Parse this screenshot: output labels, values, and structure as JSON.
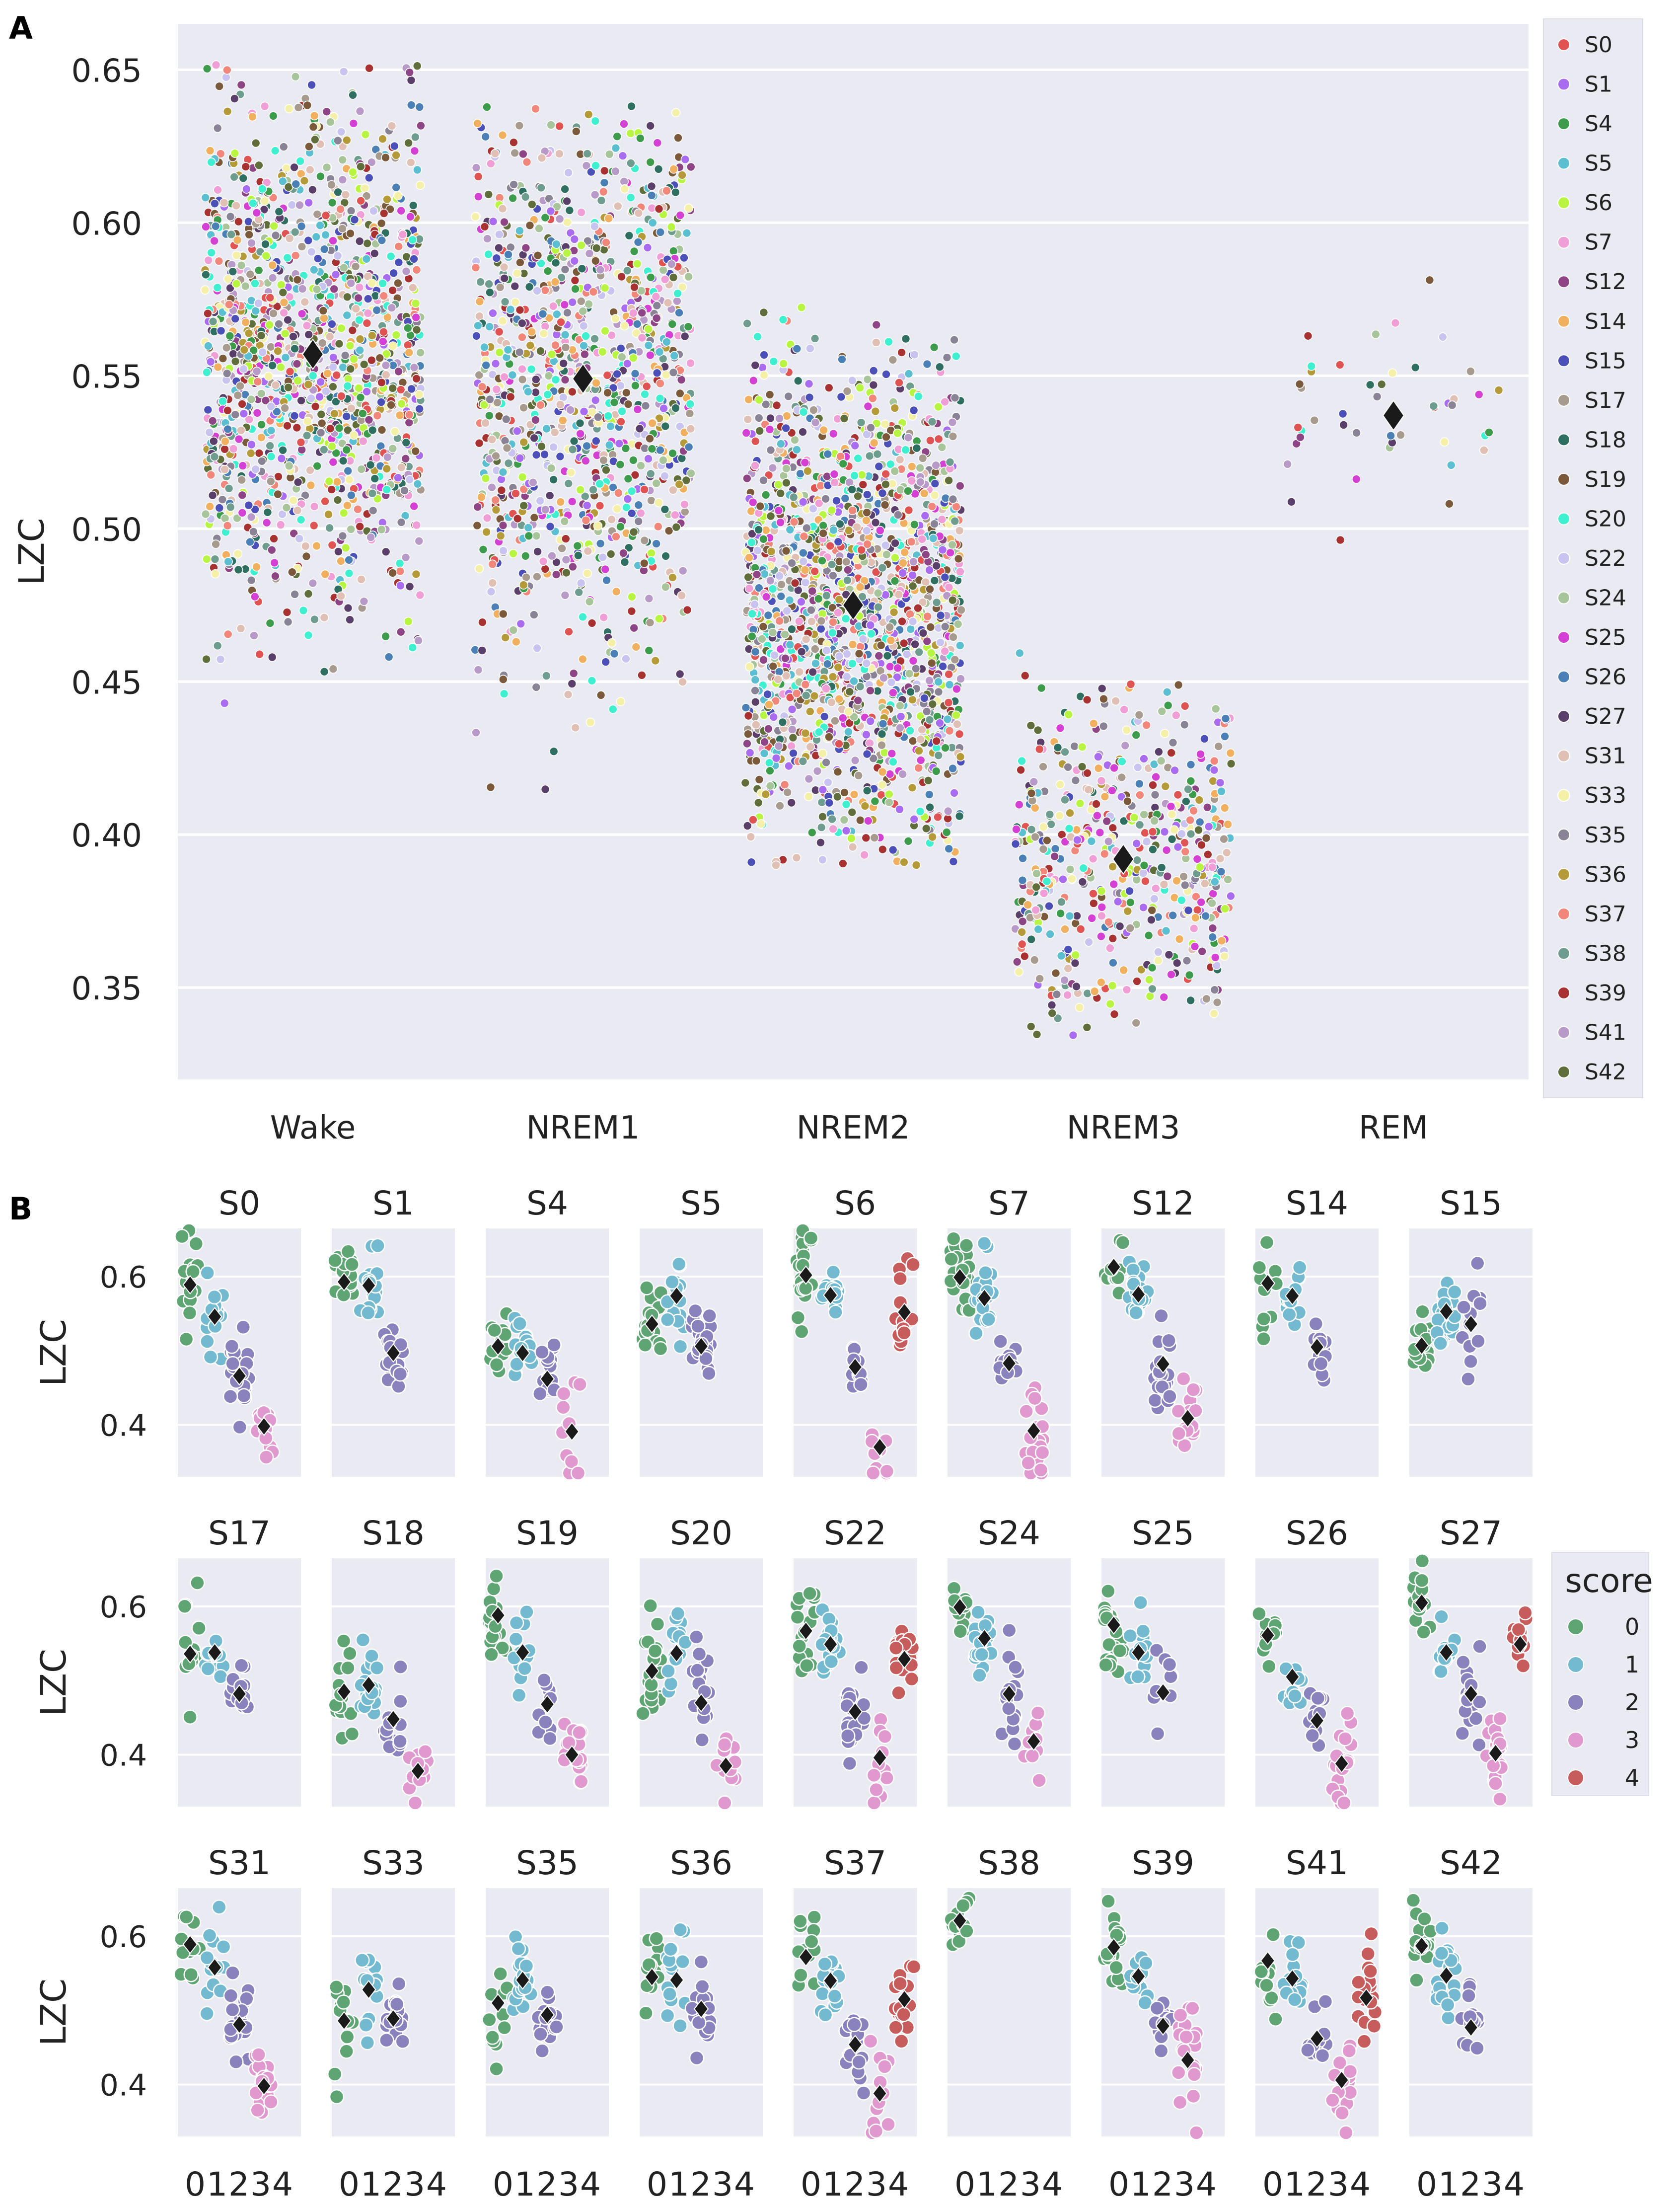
{
  "chart_data": [
    {
      "panel_label": "A",
      "type": "scatter",
      "xlabel": "",
      "ylabel": "LZC",
      "ylim": [
        0.32,
        0.665
      ],
      "yticks": [
        "0.35",
        "0.40",
        "0.45",
        "0.50",
        "0.55",
        "0.60",
        "0.65"
      ],
      "categories": [
        "Wake",
        "NREM1",
        "NREM2",
        "NREM3",
        "REM"
      ],
      "grid": true,
      "legend_position": "right",
      "legend": [
        {
          "label": "S0",
          "color": "#e05353"
        },
        {
          "label": "S1",
          "color": "#a96cf0"
        },
        {
          "label": "S4",
          "color": "#3c9c4c"
        },
        {
          "label": "S5",
          "color": "#5bbfd1"
        },
        {
          "label": "S6",
          "color": "#b7f542"
        },
        {
          "label": "S7",
          "color": "#f09ed6"
        },
        {
          "label": "S12",
          "color": "#8e4585"
        },
        {
          "label": "S14",
          "color": "#f0b060"
        },
        {
          "label": "S15",
          "color": "#4b4fb8"
        },
        {
          "label": "S17",
          "color": "#a79a8f"
        },
        {
          "label": "S18",
          "color": "#2e6f62"
        },
        {
          "label": "S19",
          "color": "#7a5a3a"
        },
        {
          "label": "S20",
          "color": "#3ef0d0"
        },
        {
          "label": "S22",
          "color": "#c9c3f0"
        },
        {
          "label": "S24",
          "color": "#a8c49a"
        },
        {
          "label": "S25",
          "color": "#d43fd4"
        },
        {
          "label": "S26",
          "color": "#4a80b5"
        },
        {
          "label": "S27",
          "color": "#5a3f6a"
        },
        {
          "label": "S31",
          "color": "#e0c0b4"
        },
        {
          "label": "S33",
          "color": "#f4f0a8"
        },
        {
          "label": "S35",
          "color": "#8a8396"
        },
        {
          "label": "S36",
          "color": "#b59a3a"
        },
        {
          "label": "S37",
          "color": "#f0877a"
        },
        {
          "label": "S38",
          "color": "#6e9c8e"
        },
        {
          "label": "S39",
          "color": "#a83232"
        },
        {
          "label": "S41",
          "color": "#b89ac9"
        },
        {
          "label": "S42",
          "color": "#5f6e3a"
        }
      ],
      "series": [
        {
          "name": "Wake",
          "mean": 0.557,
          "min": 0.437,
          "max": 0.652,
          "n_points": 1400
        },
        {
          "name": "NREM1",
          "mean": 0.549,
          "min": 0.409,
          "max": 0.639,
          "n_points": 1100
        },
        {
          "name": "NREM2",
          "mean": 0.475,
          "min": 0.39,
          "max": 0.586,
          "n_points": 1700
        },
        {
          "name": "NREM3",
          "mean": 0.392,
          "min": 0.332,
          "max": 0.468,
          "n_points": 550
        },
        {
          "name": "REM",
          "mean": 0.537,
          "min": 0.486,
          "max": 0.583,
          "n_points": 45
        }
      ]
    },
    {
      "panel_label": "B",
      "type": "scatter",
      "ylabel": "LZC",
      "ylim": [
        0.33,
        0.665
      ],
      "yticks": [
        "0.4",
        "0.6"
      ],
      "xticks": [
        "0",
        "1",
        "2",
        "3",
        "4"
      ],
      "xtick_text": "01234",
      "legend_title": "score",
      "legend": [
        {
          "label": "0",
          "color": "#5fa574"
        },
        {
          "label": "1",
          "color": "#73b9d0"
        },
        {
          "label": "2",
          "color": "#8a82bd"
        },
        {
          "label": "3",
          "color": "#df99cf"
        },
        {
          "label": "4",
          "color": "#c65c5c"
        }
      ],
      "subplots": [
        {
          "title": "S0",
          "means": [
            0.589,
            0.546,
            0.466,
            0.398,
            null
          ]
        },
        {
          "title": "S1",
          "means": [
            0.593,
            0.588,
            0.497,
            null,
            null
          ]
        },
        {
          "title": "S4",
          "means": [
            0.506,
            0.497,
            0.462,
            0.391,
            null
          ]
        },
        {
          "title": "S5",
          "means": [
            0.536,
            0.574,
            0.506,
            null,
            null
          ]
        },
        {
          "title": "S6",
          "means": [
            0.602,
            0.575,
            0.478,
            0.37,
            0.552
          ]
        },
        {
          "title": "S7",
          "means": [
            0.599,
            0.571,
            0.483,
            0.392,
            null
          ]
        },
        {
          "title": "S12",
          "means": [
            0.613,
            0.576,
            0.482,
            0.409,
            null
          ]
        },
        {
          "title": "S14",
          "means": [
            0.591,
            0.574,
            0.505,
            null,
            null
          ]
        },
        {
          "title": "S15",
          "means": [
            0.507,
            0.553,
            0.536,
            null,
            null
          ]
        },
        {
          "title": "S17",
          "means": [
            0.536,
            0.538,
            0.482,
            null,
            null
          ]
        },
        {
          "title": "S18",
          "means": [
            0.485,
            0.494,
            0.448,
            0.378,
            null
          ]
        },
        {
          "title": "S19",
          "means": [
            0.588,
            0.538,
            0.468,
            0.4,
            null
          ]
        },
        {
          "title": "S20",
          "means": [
            0.513,
            0.537,
            0.47,
            0.385,
            null
          ]
        },
        {
          "title": "S22",
          "means": [
            0.567,
            0.549,
            0.458,
            0.396,
            0.529
          ]
        },
        {
          "title": "S24",
          "means": [
            0.599,
            0.557,
            0.482,
            0.418,
            null
          ]
        },
        {
          "title": "S25",
          "means": [
            0.575,
            0.538,
            0.484,
            null,
            null
          ]
        },
        {
          "title": "S26",
          "means": [
            0.561,
            0.505,
            0.446,
            0.388,
            null
          ]
        },
        {
          "title": "S27",
          "means": [
            0.605,
            0.538,
            0.482,
            0.402,
            0.549
          ]
        },
        {
          "title": "S31",
          "means": [
            0.589,
            0.558,
            0.481,
            0.398,
            null
          ]
        },
        {
          "title": "S33",
          "means": [
            0.486,
            0.528,
            0.489,
            null,
            null
          ]
        },
        {
          "title": "S35",
          "means": [
            0.51,
            0.541,
            0.494,
            null,
            null
          ]
        },
        {
          "title": "S36",
          "means": [
            0.545,
            0.541,
            0.502,
            null,
            null
          ]
        },
        {
          "title": "S37",
          "means": [
            0.572,
            0.54,
            0.454,
            0.388,
            0.515
          ]
        },
        {
          "title": "S38",
          "means": [
            0.621,
            null,
            null,
            null,
            null
          ]
        },
        {
          "title": "S39",
          "means": [
            0.585,
            0.546,
            0.479,
            0.433,
            null
          ]
        },
        {
          "title": "S41",
          "means": [
            0.567,
            0.543,
            0.462,
            0.406,
            0.517
          ]
        },
        {
          "title": "S42",
          "means": [
            0.587,
            0.547,
            0.477,
            null,
            null
          ]
        }
      ]
    }
  ]
}
